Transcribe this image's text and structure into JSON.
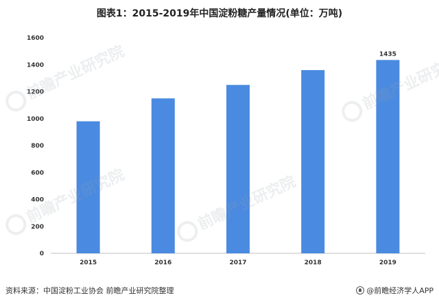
{
  "title": "图表1：2015-2019年中国淀粉糖产量情况(单位：万吨)",
  "source": "资料来源：中国淀粉工业协会 前瞻产业研究院整理",
  "brand": "@前瞻经济学人APP",
  "watermark": "前瞻产业研究院",
  "colors": {
    "bar": "#4a8ae0",
    "axis": "#bfbfbf"
  },
  "chart_data": {
    "type": "bar",
    "title": "图表1：2015-2019年中国淀粉糖产量情况(单位：万吨)",
    "categories": [
      "2015",
      "2016",
      "2017",
      "2018",
      "2019"
    ],
    "values": [
      980,
      1150,
      1250,
      1360,
      1435
    ],
    "data_labels": [
      {
        "category": "2019",
        "text": "1435"
      }
    ],
    "ylim": [
      0,
      1600
    ],
    "yticks": [
      0,
      200,
      400,
      600,
      800,
      1000,
      1200,
      1400,
      1600
    ],
    "xlabel": "",
    "ylabel": "",
    "grid": false,
    "legend": "none"
  }
}
